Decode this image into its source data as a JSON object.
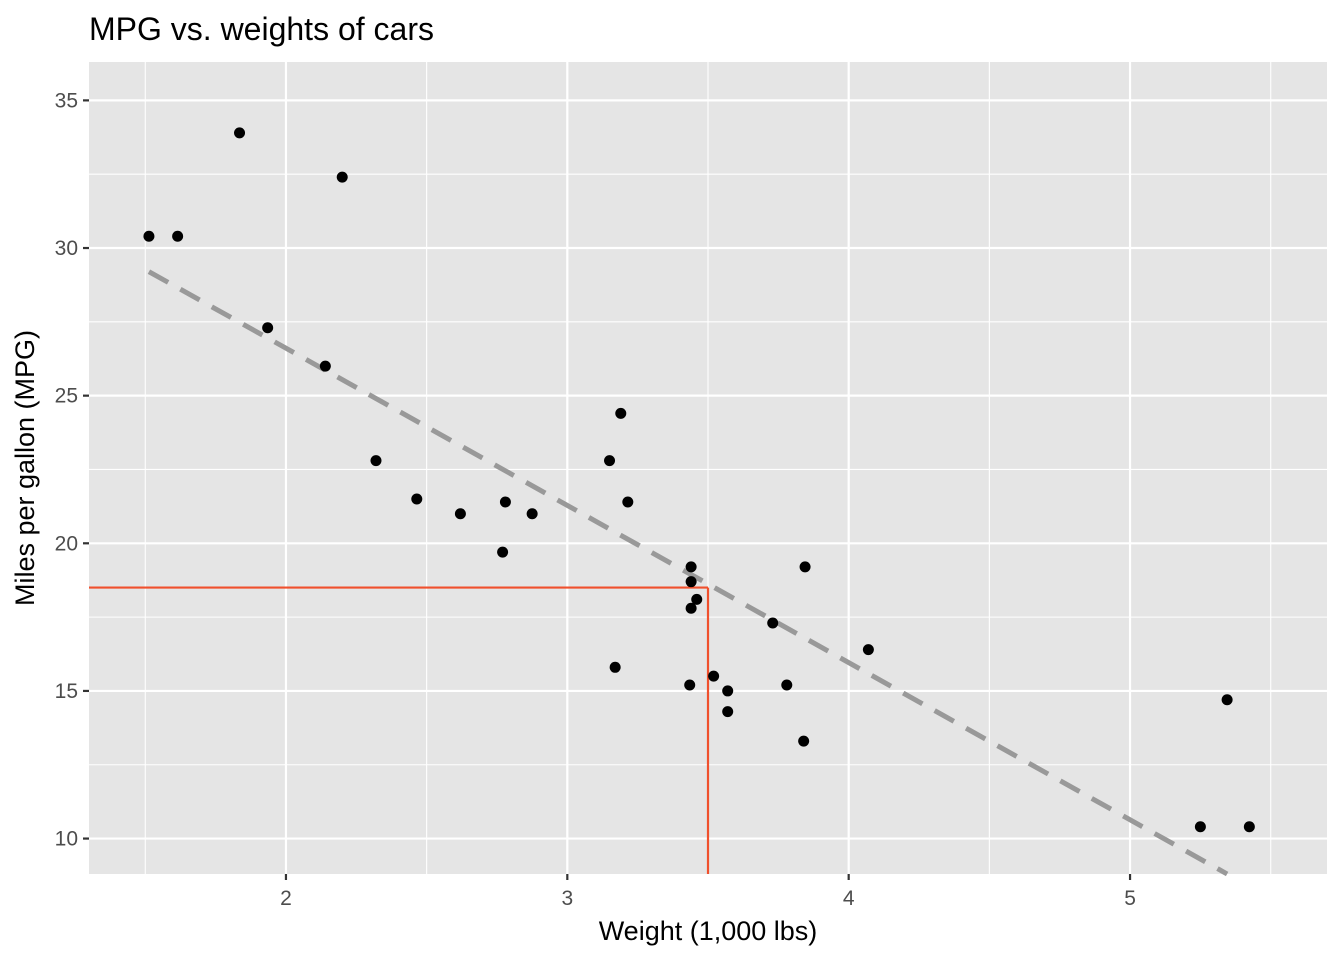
{
  "chart_data": {
    "type": "scatter",
    "title": "MPG vs. weights of cars",
    "xlabel": "Weight (1,000 lbs)",
    "ylabel": "Miles per gallon (MPG)",
    "xlim": [
      1.3,
      5.7
    ],
    "ylim": [
      8.8,
      36.3
    ],
    "x_ticks": [
      2,
      3,
      4,
      5
    ],
    "x_minor_ticks": [
      1.5,
      2.5,
      3.5,
      4.5,
      5.5
    ],
    "y_ticks": [
      10,
      15,
      20,
      25,
      30,
      35
    ],
    "y_minor_ticks": [
      12.5,
      17.5,
      22.5,
      27.5,
      32.5
    ],
    "grid": true,
    "points": [
      {
        "x": 1.513,
        "y": 30.4
      },
      {
        "x": 1.615,
        "y": 30.4
      },
      {
        "x": 1.835,
        "y": 33.9
      },
      {
        "x": 1.935,
        "y": 27.3
      },
      {
        "x": 2.14,
        "y": 26.0
      },
      {
        "x": 2.2,
        "y": 32.4
      },
      {
        "x": 2.32,
        "y": 22.8
      },
      {
        "x": 2.465,
        "y": 21.5
      },
      {
        "x": 2.62,
        "y": 21.0
      },
      {
        "x": 2.77,
        "y": 19.7
      },
      {
        "x": 2.78,
        "y": 21.4
      },
      {
        "x": 2.875,
        "y": 21.0
      },
      {
        "x": 3.15,
        "y": 22.8
      },
      {
        "x": 3.17,
        "y": 15.8
      },
      {
        "x": 3.19,
        "y": 24.4
      },
      {
        "x": 3.215,
        "y": 21.4
      },
      {
        "x": 3.435,
        "y": 15.2
      },
      {
        "x": 3.44,
        "y": 18.7
      },
      {
        "x": 3.44,
        "y": 19.2
      },
      {
        "x": 3.44,
        "y": 17.8
      },
      {
        "x": 3.46,
        "y": 18.1
      },
      {
        "x": 3.52,
        "y": 15.5
      },
      {
        "x": 3.57,
        "y": 15.0
      },
      {
        "x": 3.57,
        "y": 14.3
      },
      {
        "x": 3.73,
        "y": 17.3
      },
      {
        "x": 3.78,
        "y": 15.2
      },
      {
        "x": 3.84,
        "y": 13.3
      },
      {
        "x": 3.845,
        "y": 19.2
      },
      {
        "x": 4.07,
        "y": 16.4
      },
      {
        "x": 5.25,
        "y": 10.4
      },
      {
        "x": 5.345,
        "y": 14.7
      },
      {
        "x": 5.424,
        "y": 10.4
      }
    ],
    "trend_line": {
      "x1": 1.513,
      "y1": 29.2,
      "x2": 5.345,
      "y2": 8.8,
      "color": "#999999",
      "style": "dashed"
    },
    "reference_lines": {
      "x": 3.5,
      "y": 18.5,
      "color": "#f0502d"
    },
    "colors": {
      "panel": "#e5e5e5",
      "grid": "#ffffff",
      "point": "#000000"
    }
  }
}
